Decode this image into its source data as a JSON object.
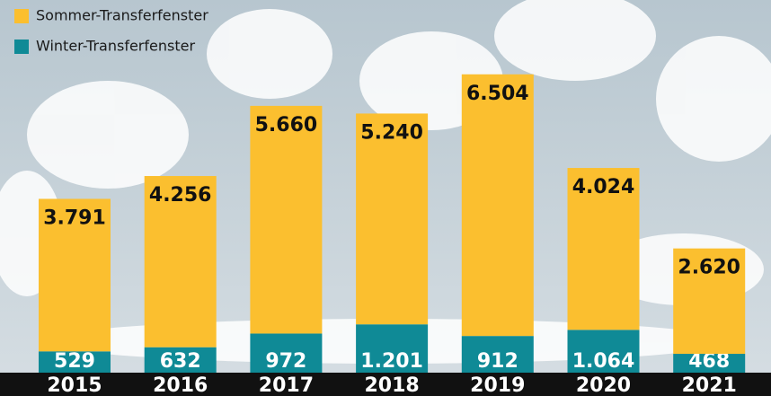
{
  "chart_data": {
    "type": "stacked-bar",
    "categories": [
      "2015",
      "2016",
      "2017",
      "2018",
      "2019",
      "2020",
      "2021"
    ],
    "series": [
      {
        "name": "Winter-Transferfenster",
        "color": "#0f8a96",
        "values": [
          529,
          632,
          972,
          1201,
          912,
          1064,
          468
        ],
        "value_labels": [
          "529",
          "632",
          "972",
          "1.201",
          "912",
          "1.064",
          "468"
        ]
      },
      {
        "name": "Sommer-Transferfenster",
        "color": "#fbbf2f",
        "values": [
          3791,
          4256,
          5660,
          5240,
          6504,
          4024,
          2620
        ],
        "value_labels": [
          "3.791",
          "4.256",
          "5.660",
          "5.240",
          "6.504",
          "4.024",
          "2.620"
        ]
      }
    ],
    "legend": "top-left"
  }
}
